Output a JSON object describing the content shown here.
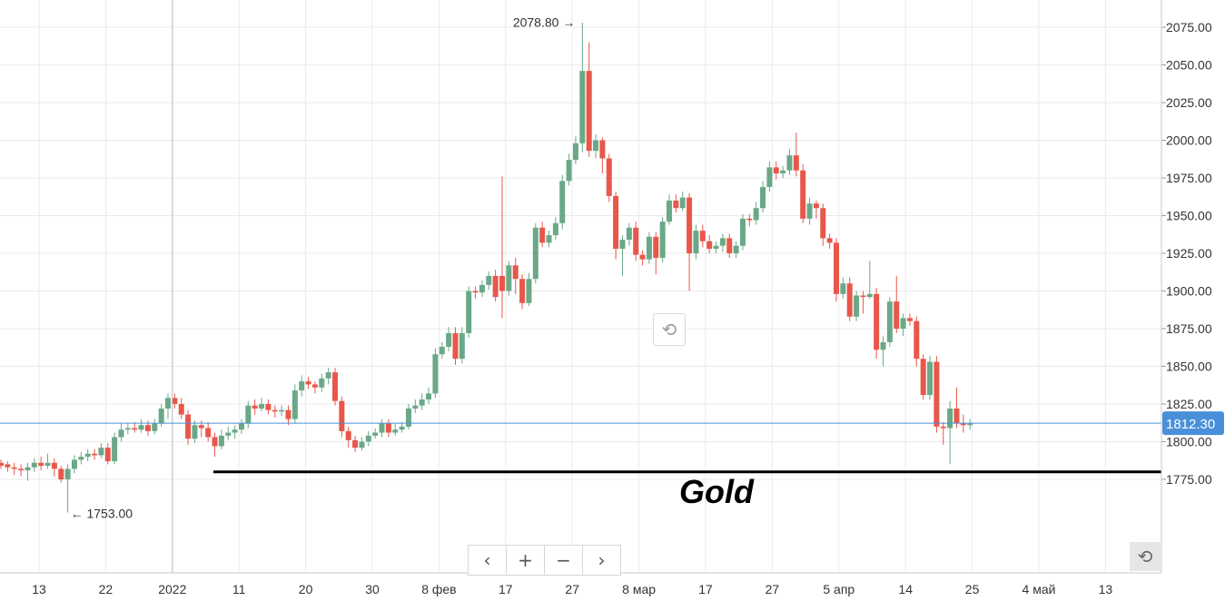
{
  "chart_data": {
    "type": "candlestick",
    "title": "Gold",
    "ylim": [
      1710,
      2096
    ],
    "grid": true,
    "colors": {
      "up": "#6aa888",
      "down": "#e8574a",
      "grid": "#ebebeb",
      "current_price": "#4a90d9",
      "crosshair": "#b8bcc4"
    },
    "y_ticks": [
      "2075.00",
      "2050.00",
      "2025.00",
      "2000.00",
      "1975.00",
      "1950.00",
      "1925.00",
      "1900.00",
      "1875.00",
      "1850.00",
      "1825.00",
      "1800.00",
      "1775.00"
    ],
    "x_ticks": [
      "13",
      "22",
      "2022",
      "11",
      "20",
      "30",
      "8 фев",
      "17",
      "27",
      "8 мар",
      "17",
      "27",
      "5 апр",
      "14",
      "25",
      "4 май",
      "13"
    ],
    "current_price": "1812.30",
    "high_annotation": "2078.80",
    "low_annotation": "1753.00",
    "support_level": 1780,
    "candles": [
      [
        1786,
        1784,
        1788,
        1782
      ],
      [
        1785,
        1783,
        1787,
        1780
      ],
      [
        1783,
        1782,
        1786,
        1778
      ],
      [
        1782,
        1781,
        1785,
        1777
      ],
      [
        1781,
        1783,
        1786,
        1774
      ],
      [
        1783,
        1786,
        1789,
        1780
      ],
      [
        1786,
        1784,
        1790,
        1781
      ],
      [
        1784,
        1786,
        1792,
        1782
      ],
      [
        1786,
        1782,
        1789,
        1777
      ],
      [
        1782,
        1775,
        1784,
        1773
      ],
      [
        1775,
        1782,
        1785,
        1753
      ],
      [
        1782,
        1788,
        1791,
        1779
      ],
      [
        1788,
        1790,
        1793,
        1785
      ],
      [
        1790,
        1792,
        1795,
        1787
      ],
      [
        1792,
        1791,
        1795,
        1788
      ],
      [
        1791,
        1796,
        1799,
        1789
      ],
      [
        1796,
        1787,
        1799,
        1785
      ],
      [
        1787,
        1803,
        1806,
        1785
      ],
      [
        1803,
        1808,
        1812,
        1800
      ],
      [
        1808,
        1809,
        1812,
        1805
      ],
      [
        1809,
        1808,
        1813,
        1806
      ],
      [
        1808,
        1811,
        1815,
        1806
      ],
      [
        1811,
        1807,
        1814,
        1804
      ],
      [
        1807,
        1812,
        1815,
        1805
      ],
      [
        1812,
        1822,
        1825,
        1810
      ],
      [
        1822,
        1829,
        1832,
        1815
      ],
      [
        1829,
        1825,
        1832,
        1822
      ],
      [
        1825,
        1818,
        1829,
        1815
      ],
      [
        1818,
        1802,
        1821,
        1798
      ],
      [
        1802,
        1811,
        1814,
        1799
      ],
      [
        1811,
        1809,
        1814,
        1803
      ],
      [
        1809,
        1803,
        1813,
        1800
      ],
      [
        1803,
        1797,
        1806,
        1790
      ],
      [
        1797,
        1804,
        1808,
        1795
      ],
      [
        1804,
        1806,
        1810,
        1801
      ],
      [
        1806,
        1808,
        1811,
        1802
      ],
      [
        1808,
        1812,
        1815,
        1805
      ],
      [
        1812,
        1824,
        1827,
        1809
      ],
      [
        1824,
        1822,
        1828,
        1818
      ],
      [
        1822,
        1825,
        1829,
        1820
      ],
      [
        1825,
        1821,
        1828,
        1818
      ],
      [
        1821,
        1820,
        1824,
        1816
      ],
      [
        1820,
        1821,
        1824,
        1817
      ],
      [
        1821,
        1815,
        1824,
        1811
      ],
      [
        1815,
        1834,
        1838,
        1812
      ],
      [
        1834,
        1840,
        1844,
        1830
      ],
      [
        1840,
        1838,
        1843,
        1835
      ],
      [
        1838,
        1836,
        1840,
        1832
      ],
      [
        1836,
        1842,
        1845,
        1833
      ],
      [
        1842,
        1846,
        1849,
        1838
      ],
      [
        1846,
        1827,
        1849,
        1824
      ],
      [
        1827,
        1807,
        1830,
        1803
      ],
      [
        1807,
        1801,
        1810,
        1796
      ],
      [
        1801,
        1796,
        1804,
        1793
      ],
      [
        1796,
        1800,
        1803,
        1794
      ],
      [
        1800,
        1804,
        1807,
        1797
      ],
      [
        1804,
        1806,
        1809,
        1802
      ],
      [
        1806,
        1812,
        1815,
        1803
      ],
      [
        1812,
        1806,
        1815,
        1803
      ],
      [
        1806,
        1808,
        1812,
        1804
      ],
      [
        1808,
        1810,
        1813,
        1806
      ],
      [
        1810,
        1822,
        1825,
        1808
      ],
      [
        1822,
        1824,
        1828,
        1819
      ],
      [
        1824,
        1828,
        1832,
        1821
      ],
      [
        1828,
        1832,
        1836,
        1825
      ],
      [
        1832,
        1858,
        1862,
        1829
      ],
      [
        1858,
        1863,
        1866,
        1855
      ],
      [
        1863,
        1872,
        1876,
        1860
      ],
      [
        1872,
        1855,
        1876,
        1851
      ],
      [
        1855,
        1872,
        1876,
        1852
      ],
      [
        1872,
        1900,
        1903,
        1869
      ],
      [
        1900,
        1899,
        1903,
        1895
      ],
      [
        1899,
        1904,
        1907,
        1896
      ],
      [
        1904,
        1910,
        1913,
        1901
      ],
      [
        1910,
        1896,
        1914,
        1893
      ],
      [
        1910,
        1900,
        1976,
        1882
      ],
      [
        1900,
        1917,
        1920,
        1897
      ],
      [
        1917,
        1908,
        1922,
        1898
      ],
      [
        1908,
        1892,
        1911,
        1888
      ],
      [
        1892,
        1908,
        1912,
        1890
      ],
      [
        1908,
        1942,
        1945,
        1905
      ],
      [
        1942,
        1932,
        1946,
        1929
      ],
      [
        1932,
        1937,
        1940,
        1929
      ],
      [
        1937,
        1945,
        1949,
        1934
      ],
      [
        1945,
        1973,
        1977,
        1941
      ],
      [
        1973,
        1987,
        1991,
        1970
      ],
      [
        1987,
        1998,
        2003,
        1984
      ],
      [
        1998,
        2046,
        2078,
        1992
      ],
      [
        2046,
        1993,
        2065,
        1989
      ],
      [
        1993,
        2000,
        2004,
        1988
      ],
      [
        2000,
        1988,
        2002,
        1978
      ],
      [
        1988,
        1963,
        1991,
        1959
      ],
      [
        1963,
        1928,
        1966,
        1921
      ],
      [
        1928,
        1934,
        1937,
        1910
      ],
      [
        1934,
        1942,
        1945,
        1930
      ],
      [
        1942,
        1924,
        1946,
        1920
      ],
      [
        1924,
        1921,
        1927,
        1917
      ],
      [
        1921,
        1936,
        1939,
        1918
      ],
      [
        1936,
        1922,
        1939,
        1911
      ],
      [
        1922,
        1946,
        1949,
        1919
      ],
      [
        1946,
        1960,
        1964,
        1944
      ],
      [
        1960,
        1955,
        1964,
        1952
      ],
      [
        1955,
        1962,
        1966,
        1953
      ],
      [
        1962,
        1925,
        1965,
        1900
      ],
      [
        1925,
        1940,
        1944,
        1921
      ],
      [
        1940,
        1933,
        1944,
        1929
      ],
      [
        1933,
        1928,
        1937,
        1925
      ],
      [
        1928,
        1930,
        1933,
        1925
      ],
      [
        1930,
        1935,
        1938,
        1926
      ],
      [
        1935,
        1925,
        1938,
        1922
      ],
      [
        1925,
        1930,
        1933,
        1922
      ],
      [
        1930,
        1948,
        1951,
        1927
      ],
      [
        1948,
        1947,
        1951,
        1943
      ],
      [
        1947,
        1955,
        1959,
        1944
      ],
      [
        1955,
        1969,
        1973,
        1952
      ],
      [
        1969,
        1982,
        1986,
        1966
      ],
      [
        1982,
        1978,
        1986,
        1974
      ],
      [
        1978,
        1980,
        1983,
        1975
      ],
      [
        1980,
        1990,
        1994,
        1977
      ],
      [
        1990,
        1980,
        2005,
        1976
      ],
      [
        1980,
        1948,
        1984,
        1945
      ],
      [
        1948,
        1958,
        1962,
        1944
      ],
      [
        1958,
        1955,
        1960,
        1948
      ],
      [
        1955,
        1935,
        1958,
        1930
      ],
      [
        1935,
        1932,
        1938,
        1928
      ],
      [
        1932,
        1898,
        1935,
        1893
      ],
      [
        1898,
        1905,
        1909,
        1895
      ],
      [
        1905,
        1883,
        1909,
        1880
      ],
      [
        1883,
        1897,
        1900,
        1880
      ],
      [
        1897,
        1896,
        1900,
        1885
      ],
      [
        1896,
        1898,
        1920,
        1895
      ],
      [
        1898,
        1861,
        1902,
        1855
      ],
      [
        1861,
        1866,
        1870,
        1850
      ],
      [
        1866,
        1893,
        1896,
        1863
      ],
      [
        1893,
        1875,
        1910,
        1872
      ],
      [
        1875,
        1882,
        1885,
        1870
      ],
      [
        1882,
        1880,
        1885,
        1877
      ],
      [
        1880,
        1855,
        1883,
        1850
      ],
      [
        1855,
        1831,
        1858,
        1828
      ],
      [
        1831,
        1853,
        1857,
        1828
      ],
      [
        1853,
        1810,
        1857,
        1806
      ],
      [
        1810,
        1809,
        1813,
        1798
      ],
      [
        1809,
        1822,
        1827,
        1785
      ],
      [
        1822,
        1812,
        1836,
        1809
      ],
      [
        1812,
        1811,
        1818,
        1806
      ],
      [
        1811,
        1812,
        1815,
        1808
      ]
    ]
  },
  "nav": {
    "prev": "‹",
    "zoom_in": "+",
    "zoom_out": "−",
    "next": "›"
  },
  "reset_icon": "⟲",
  "icons": [
    "chevron-left-icon",
    "plus-icon",
    "minus-icon",
    "chevron-right-icon",
    "undo-icon"
  ]
}
